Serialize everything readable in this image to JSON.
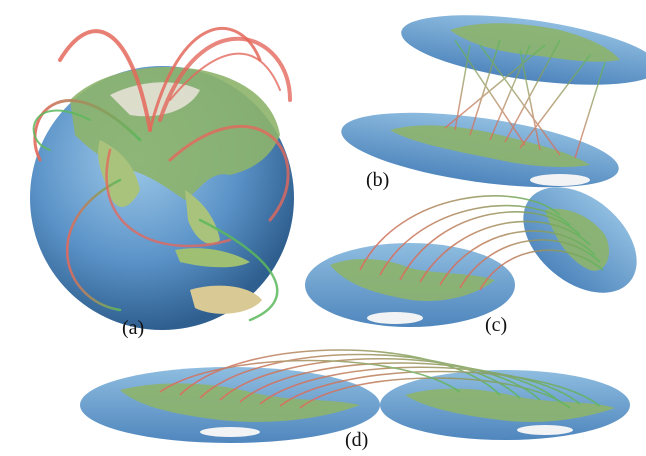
{
  "figure": {
    "panels": [
      {
        "id": "a",
        "label": "(a)",
        "view": "globe"
      },
      {
        "id": "b",
        "label": "(b)",
        "view": "stacked-flat-maps"
      },
      {
        "id": "c",
        "label": "(c)",
        "view": "tilted-flat-maps"
      },
      {
        "id": "d",
        "label": "(d)",
        "view": "side-by-side-flat-maps"
      }
    ],
    "colors": {
      "ocean": "#5b93c8",
      "ocean_light": "#8fbde0",
      "land_green": "#8db46b",
      "land_tan": "#d9c994",
      "ice": "#f1f3f5",
      "flow_origin": "#e4685c",
      "flow_destination": "#5cb85c"
    }
  }
}
